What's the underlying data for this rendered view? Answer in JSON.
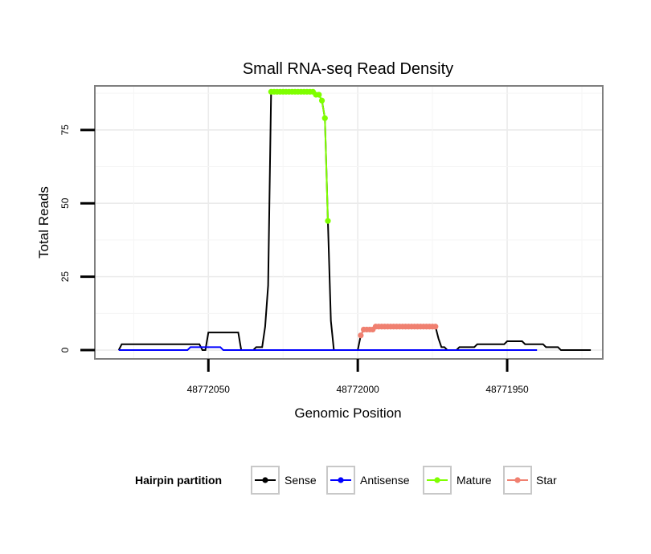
{
  "chart_data": {
    "type": "line",
    "title": "Small RNA-seq Read Density",
    "xlabel": "Genomic Position",
    "ylabel": "Total Reads",
    "x_reversed": true,
    "xlim": [
      48772088,
      48771918
    ],
    "ylim": [
      -3,
      90
    ],
    "x_ticks": [
      48772050,
      48772000,
      48771950
    ],
    "x_tick_labels": [
      "48772050",
      "48772000",
      "48771950"
    ],
    "y_ticks": [
      0,
      25,
      50,
      75
    ],
    "y_tick_labels": [
      "0",
      "25",
      "50",
      "75"
    ],
    "grid": true,
    "legend": {
      "title": "Hairpin partition",
      "position": "bottom",
      "entries": [
        "Sense",
        "Antisense",
        "Mature",
        "Star"
      ]
    },
    "colors": {
      "Sense": "#000000",
      "Antisense": "#0000ff",
      "Mature": "#7fff00",
      "Star": "#f08070"
    },
    "series": [
      {
        "name": "Sense",
        "x": [
          48772080,
          48772079,
          48772053,
          48772052,
          48772051,
          48772050,
          48772040,
          48772039,
          48772036,
          48772035,
          48772034,
          48772033,
          48772032,
          48772031,
          48772030,
          48772029,
          48772028,
          48772027,
          48772026,
          48772025,
          48772024,
          48772023,
          48772022,
          48772021,
          48772020,
          48772019,
          48772018,
          48772017,
          48772016,
          48772015,
          48772014,
          48772013,
          48772012,
          48772011,
          48772010,
          48772009,
          48772008,
          48772007,
          48772006,
          48772005,
          48772004,
          48772003,
          48772002,
          48772001,
          48772000,
          48771999,
          48771998,
          48771997,
          48771996,
          48771995,
          48771994,
          48771993,
          48771992,
          48771991,
          48771990,
          48771989,
          48771988,
          48771987,
          48771986,
          48771985,
          48771984,
          48771983,
          48771982,
          48771981,
          48771980,
          48771979,
          48771978,
          48771977,
          48771976,
          48771975,
          48771974,
          48771973,
          48771972,
          48771971,
          48771970,
          48771969,
          48771968,
          48771967,
          48771966,
          48771965,
          48771964,
          48771963,
          48771962,
          48771961,
          48771960,
          48771959,
          48771958,
          48771957,
          48771956,
          48771955,
          48771954,
          48771953,
          48771952,
          48771951,
          48771950,
          48771949,
          48771948,
          48771947,
          48771946,
          48771945,
          48771944,
          48771943,
          48771942,
          48771941,
          48771940,
          48771939,
          48771938,
          48771937,
          48771936,
          48771935,
          48771934,
          48771933,
          48771932,
          48771931,
          48771930,
          48771929,
          48771928,
          48771927,
          48771926,
          48771925,
          48771924,
          48771923,
          48771922
        ],
        "y": [
          0,
          2,
          2,
          0,
          0,
          6,
          6,
          0,
          0,
          0,
          1,
          1,
          1,
          8,
          22,
          88,
          88,
          88,
          88,
          88,
          88,
          88,
          88,
          88,
          88,
          88,
          88,
          88,
          88,
          88,
          87,
          87,
          85,
          79,
          44,
          10,
          0,
          0,
          0,
          0,
          0,
          0,
          0,
          0,
          0,
          5,
          7,
          7,
          7,
          7,
          8,
          8,
          8,
          8,
          8,
          8,
          8,
          8,
          8,
          8,
          8,
          8,
          8,
          8,
          8,
          8,
          8,
          8,
          8,
          8,
          8,
          4,
          1,
          1,
          0,
          0,
          0,
          0,
          1,
          1,
          1,
          1,
          1,
          1,
          2,
          2,
          2,
          2,
          2,
          2,
          2,
          2,
          2,
          2,
          3,
          3,
          3,
          3,
          3,
          3,
          2,
          2,
          2,
          2,
          2,
          2,
          2,
          1,
          1,
          1,
          1,
          1,
          0,
          0,
          0,
          0,
          0,
          0,
          0,
          0,
          0,
          0,
          0
        ]
      },
      {
        "name": "Antisense",
        "x": [
          48772080,
          48772057,
          48772056,
          48772046,
          48772045,
          48771940
        ],
        "y": [
          0,
          0,
          1,
          1,
          0,
          0
        ]
      },
      {
        "name": "Mature",
        "x": [
          48772029,
          48772028,
          48772027,
          48772026,
          48772025,
          48772024,
          48772023,
          48772022,
          48772021,
          48772020,
          48772019,
          48772018,
          48772017,
          48772016,
          48772015,
          48772014,
          48772013,
          48772012,
          48772011,
          48772010
        ],
        "y": [
          88,
          88,
          88,
          88,
          88,
          88,
          88,
          88,
          88,
          88,
          88,
          88,
          88,
          88,
          88,
          87,
          87,
          85,
          79,
          44
        ]
      },
      {
        "name": "Star",
        "x": [
          48771999,
          48771998,
          48771997,
          48771996,
          48771995,
          48771994,
          48771993,
          48771992,
          48771991,
          48771990,
          48771989,
          48771988,
          48771987,
          48771986,
          48771985,
          48771984,
          48771983,
          48771982,
          48771981,
          48771980,
          48771979,
          48771978,
          48771977,
          48771976,
          48771975,
          48771974
        ],
        "y": [
          5,
          7,
          7,
          7,
          7,
          8,
          8,
          8,
          8,
          8,
          8,
          8,
          8,
          8,
          8,
          8,
          8,
          8,
          8,
          8,
          8,
          8,
          8,
          8,
          8,
          8
        ]
      }
    ]
  }
}
